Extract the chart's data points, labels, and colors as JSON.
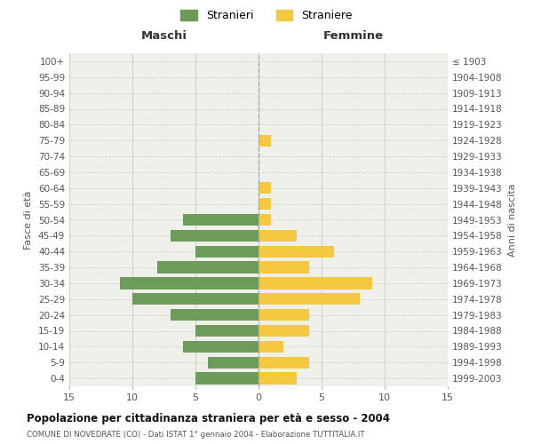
{
  "age_groups": [
    "0-4",
    "5-9",
    "10-14",
    "15-19",
    "20-24",
    "25-29",
    "30-34",
    "35-39",
    "40-44",
    "45-49",
    "50-54",
    "55-59",
    "60-64",
    "65-69",
    "70-74",
    "75-79",
    "80-84",
    "85-89",
    "90-94",
    "95-99",
    "100+"
  ],
  "birth_years": [
    "1999-2003",
    "1994-1998",
    "1989-1993",
    "1984-1988",
    "1979-1983",
    "1974-1978",
    "1969-1973",
    "1964-1968",
    "1959-1963",
    "1954-1958",
    "1949-1953",
    "1944-1948",
    "1939-1943",
    "1934-1938",
    "1929-1933",
    "1924-1928",
    "1919-1923",
    "1914-1918",
    "1909-1913",
    "1904-1908",
    "≤ 1903"
  ],
  "maschi": [
    5,
    4,
    6,
    5,
    7,
    10,
    11,
    8,
    5,
    7,
    6,
    0,
    0,
    0,
    0,
    0,
    0,
    0,
    0,
    0,
    0
  ],
  "femmine": [
    3,
    4,
    2,
    4,
    4,
    8,
    9,
    4,
    6,
    3,
    1,
    1,
    1,
    0,
    0,
    1,
    0,
    0,
    0,
    0,
    0
  ],
  "maschi_color": "#6d9b5a",
  "femmine_color": "#f5c842",
  "xlim": 15,
  "title_main": "Popolazione per cittadinanza straniera per età e sesso - 2004",
  "title_sub": "COMUNE DI NOVEDRATE (CO) - Dati ISTAT 1° gennaio 2004 - Elaborazione TUTTITALIA.IT",
  "ylabel_left": "Fasce di età",
  "ylabel_right": "Anni di nascita",
  "header_left": "Maschi",
  "header_right": "Femmine",
  "legend_maschi": "Stranieri",
  "legend_femmine": "Straniere",
  "bg_color": "#ffffff",
  "plot_bg_color": "#f0f0ea",
  "grid_color": "#d0d0c8",
  "dashed_line_color": "#aaaaaa"
}
